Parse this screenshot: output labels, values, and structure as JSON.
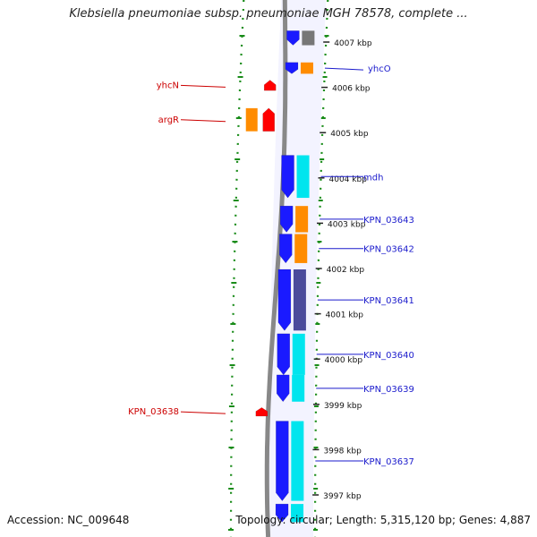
{
  "title": "Klebsiella pneumoniae subsp. pneumoniae MGH 78578, complete ...",
  "footer": {
    "accession": "Accession: NC_009648",
    "topology": "Topology: circular; Length: 5,315,120 bp; Genes: 4,887"
  },
  "colors": {
    "forward_cds": "#1a1aff",
    "reverse_cds": "#ff0000",
    "cog_orange": "#ff8c00",
    "cog_cyan": "#00e5ee",
    "cog_slate": "#4b4b9c",
    "cog_grey": "#777777",
    "backbone": "#888888",
    "gc_dots": "#1a8c1a",
    "label_forward": "#1a1acc",
    "label_reverse": "#cc0000"
  },
  "ticks": [
    {
      "kbp": 4007,
      "label": "4007 kbp"
    },
    {
      "kbp": 4006,
      "label": "4006 kbp"
    },
    {
      "kbp": 4005,
      "label": "4005 kbp"
    },
    {
      "kbp": 4004,
      "label": "4004 kbp"
    },
    {
      "kbp": 4003,
      "label": "4003 kbp"
    },
    {
      "kbp": 4002,
      "label": "4002 kbp"
    },
    {
      "kbp": 4001,
      "label": "4001 kbp"
    },
    {
      "kbp": 4000,
      "label": "4000 kbp"
    },
    {
      "kbp": 3999,
      "label": "3999 kbp"
    },
    {
      "kbp": 3998,
      "label": "3998 kbp"
    },
    {
      "kbp": 3997,
      "label": "3997 kbp"
    }
  ],
  "genes": [
    {
      "name": "",
      "strand": "forward",
      "start_kbp": 4007.25,
      "end_kbp": 4006.93,
      "cog": "cog_grey"
    },
    {
      "name": "yhcO",
      "strand": "forward",
      "start_kbp": 4006.55,
      "end_kbp": 4006.3,
      "cog": "cog_orange"
    },
    {
      "name": "yhcN",
      "strand": "reverse",
      "start_kbp": 4006.16,
      "end_kbp": 4005.93,
      "cog": ""
    },
    {
      "name": "argR",
      "strand": "reverse",
      "start_kbp": 4005.54,
      "end_kbp": 4005.03,
      "cog": "cog_orange"
    },
    {
      "name": "mdh",
      "strand": "forward",
      "start_kbp": 4004.5,
      "end_kbp": 4003.56,
      "cog": "cog_cyan"
    },
    {
      "name": "KPN_03643",
      "strand": "forward",
      "start_kbp": 4003.38,
      "end_kbp": 4002.8,
      "cog": "cog_orange"
    },
    {
      "name": "KPN_03642",
      "strand": "forward",
      "start_kbp": 4002.76,
      "end_kbp": 4002.12,
      "cog": "cog_orange"
    },
    {
      "name": "KPN_03641",
      "strand": "forward",
      "start_kbp": 4001.98,
      "end_kbp": 4000.63,
      "cog": "cog_slate"
    },
    {
      "name": "KPN_03640",
      "strand": "forward",
      "start_kbp": 4000.56,
      "end_kbp": 3999.65,
      "cog": "cog_cyan"
    },
    {
      "name": "KPN_03639",
      "strand": "forward",
      "start_kbp": 3999.65,
      "end_kbp": 3999.06,
      "cog": "cog_cyan"
    },
    {
      "name": "KPN_03638",
      "strand": "reverse",
      "start_kbp": 3998.93,
      "end_kbp": 3998.74,
      "cog": ""
    },
    {
      "name": "KPN_03637",
      "strand": "forward",
      "start_kbp": 3998.63,
      "end_kbp": 3996.87,
      "cog": "cog_cyan"
    },
    {
      "name": "",
      "strand": "forward",
      "start_kbp": 3996.8,
      "end_kbp": 3996.4,
      "cog": "cog_cyan"
    }
  ]
}
